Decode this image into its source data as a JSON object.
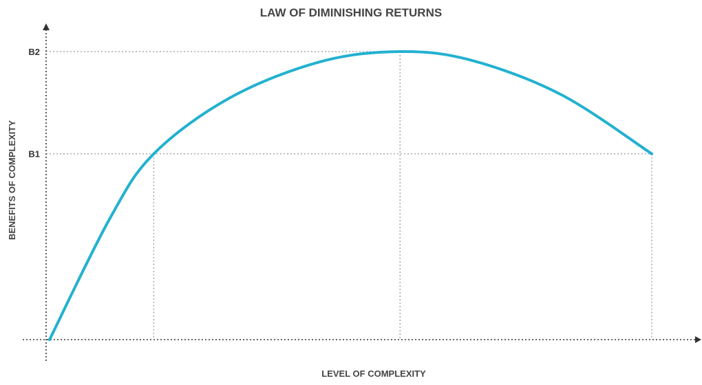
{
  "chart_data": {
    "type": "line",
    "title": "LAW OF DIMINISHING RETURNS",
    "xlabel": "LEVEL OF COMPLEXITY",
    "ylabel": "BENEFITS OF COMPLEXITY",
    "xlim": [
      0,
      100
    ],
    "ylim": [
      0,
      100
    ],
    "y_ticks": [
      {
        "label": "B1",
        "value": 64.5
      },
      {
        "label": "B2",
        "value": 100
      }
    ],
    "x_markers": [
      17.3,
      58.2,
      100
    ],
    "series": [
      {
        "color": "#22b1d0",
        "points": [
          {
            "x": 0,
            "y": 0
          },
          {
            "x": 10,
            "y": 42
          },
          {
            "x": 17.3,
            "y": 64.5
          },
          {
            "x": 30,
            "y": 84
          },
          {
            "x": 45,
            "y": 96.5
          },
          {
            "x": 58.2,
            "y": 100
          },
          {
            "x": 70,
            "y": 97
          },
          {
            "x": 85,
            "y": 85
          },
          {
            "x": 100,
            "y": 64.5
          }
        ]
      }
    ],
    "grid": false
  }
}
